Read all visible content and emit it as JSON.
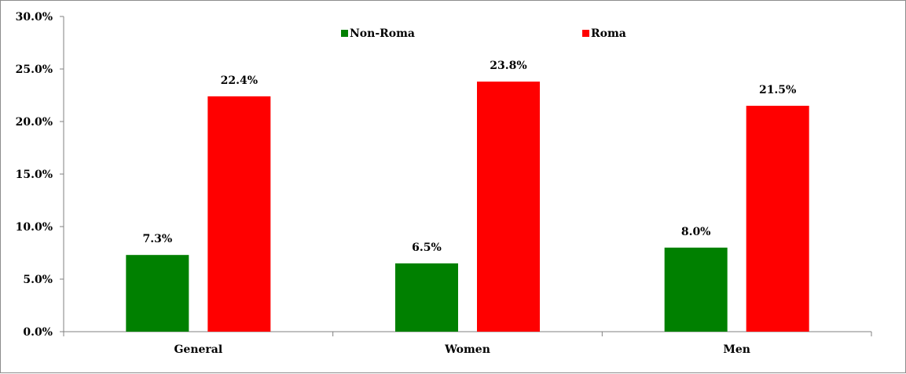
{
  "chart_data": {
    "type": "bar",
    "categories": [
      "General",
      "Women",
      "Men"
    ],
    "series": [
      {
        "name": "Non-Roma",
        "values": [
          7.3,
          6.5,
          8.0
        ],
        "labels": [
          "7.3%",
          "6.5%",
          "8.0%"
        ],
        "color": "#008000"
      },
      {
        "name": "Roma",
        "values": [
          22.4,
          23.8,
          21.5
        ],
        "labels": [
          "22.4%",
          "23.8%",
          "21.5%"
        ],
        "color": "#ff0000"
      }
    ],
    "y_ticks": [
      "0.0%",
      "5.0%",
      "10.0%",
      "15.0%",
      "20.0%",
      "25.0%",
      "30.0%"
    ],
    "ylim": [
      0,
      30
    ],
    "title": "",
    "xlabel": "",
    "ylabel": "",
    "grid": false,
    "legend_position": "top"
  }
}
